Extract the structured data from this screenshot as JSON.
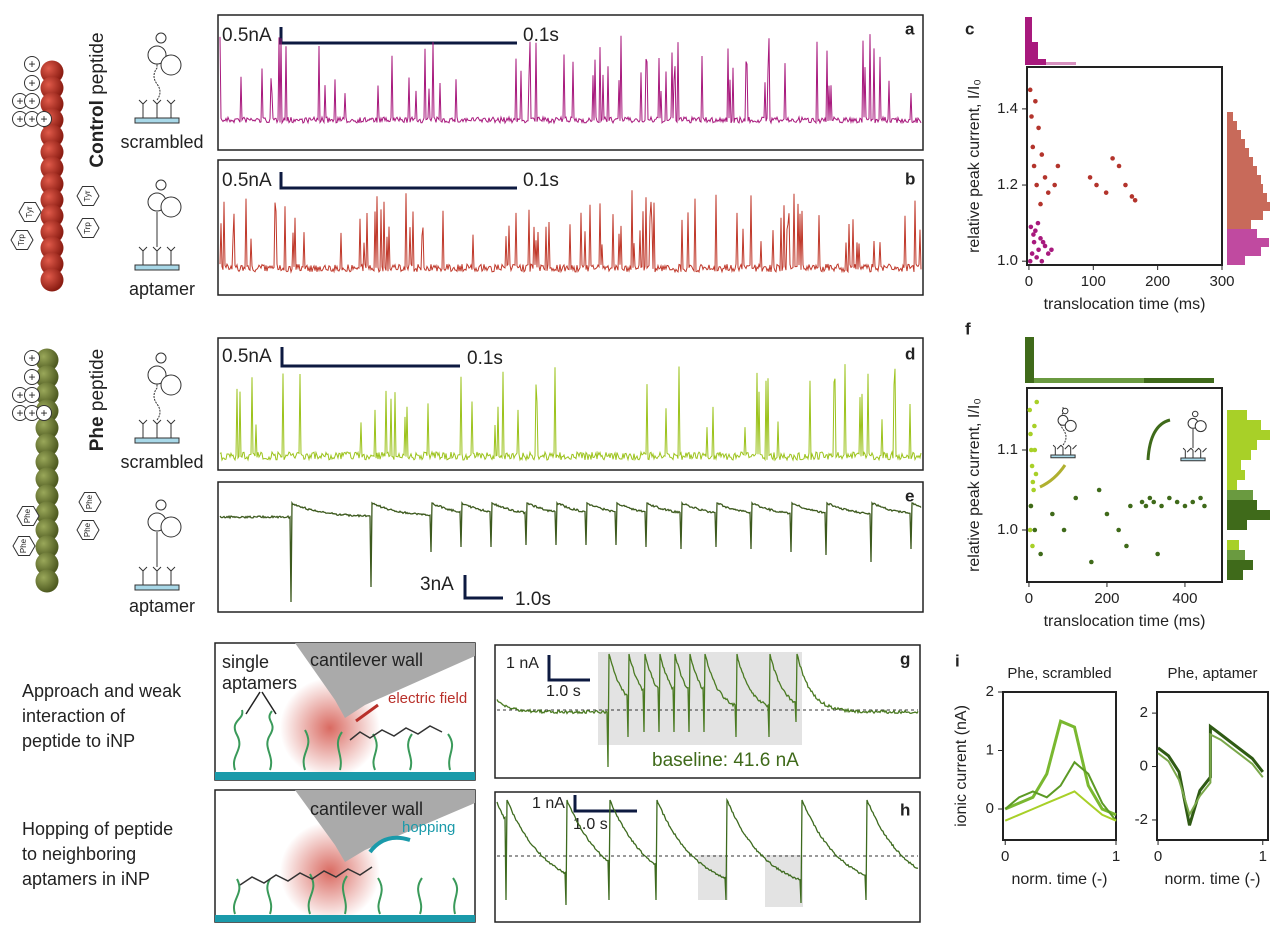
{
  "peptides": [
    {
      "name": "Control",
      "rest": " peptide",
      "charge": "+",
      "residues": [
        "Tyr",
        "Tyr",
        "Trp",
        "Trp"
      ]
    },
    {
      "name": "Phe",
      "rest": " peptide",
      "charge": "+",
      "residues": [
        "Phe",
        "Phe",
        "Phe",
        "Phe"
      ]
    }
  ],
  "traces": [
    {
      "panel": "a",
      "probe": "scrambled",
      "current_scale": "0.5nA",
      "time_scale": "0.1s"
    },
    {
      "panel": "b",
      "probe": "aptamer",
      "current_scale": "0.5nA",
      "time_scale": "0.1s"
    },
    {
      "panel": "d",
      "probe": "scrambled",
      "current_scale": "0.5nA",
      "time_scale": "0.1s"
    },
    {
      "panel": "e",
      "probe": "aptamer",
      "current_scale": "3nA",
      "time_scale": "1.0s"
    },
    {
      "panel": "g",
      "current_scale": "1 nA",
      "time_scale": "1.0 s",
      "annotation": "baseline: 41.6 nA"
    },
    {
      "panel": "h",
      "current_scale": "1 nA",
      "time_scale": "1.0 s"
    }
  ],
  "schematics": [
    {
      "caption": [
        "Approach and weak",
        "interaction of",
        "peptide to iNP"
      ],
      "wall": "cantilever wall",
      "aptamers": [
        "single",
        "aptamers"
      ],
      "field": "electric field"
    },
    {
      "caption": [
        "Hopping of peptide",
        "to neighboring",
        "aptamers in iNP"
      ],
      "wall": "cantilever wall",
      "hop": "hopping"
    }
  ],
  "chart_data": [
    {
      "type": "scatter",
      "panel": "c",
      "y_label": "relative peak current, I/I₀",
      "x_label": "translocation time (ms)",
      "xlim": [
        -3,
        300
      ],
      "ylim": [
        0.99,
        1.51
      ],
      "xticks": [
        0,
        100,
        200,
        300
      ],
      "yticks": [
        {
          "value": 1,
          "label": "1.0"
        },
        1.2,
        1.4
      ],
      "series": [
        {
          "color": "#a8197d",
          "x": [
            2,
            5,
            8,
            10,
            12,
            15,
            18,
            20,
            25,
            30,
            3,
            7,
            14,
            22,
            35
          ],
          "values": [
            1.0,
            1.02,
            1.05,
            1.08,
            1.01,
            1.03,
            1.06,
            1.0,
            1.04,
            1.02,
            1.09,
            1.07,
            1.1,
            1.05,
            1.03
          ]
        },
        {
          "color": "#b3342c",
          "x": [
            2,
            4,
            6,
            8,
            10,
            12,
            15,
            18,
            20,
            25,
            30,
            40,
            45,
            95,
            105,
            120,
            130,
            140,
            150,
            160,
            165
          ],
          "values": [
            1.45,
            1.38,
            1.3,
            1.25,
            1.42,
            1.2,
            1.35,
            1.15,
            1.28,
            1.22,
            1.18,
            1.2,
            1.25,
            1.22,
            1.2,
            1.18,
            1.27,
            1.25,
            1.2,
            1.17,
            1.16
          ]
        }
      ]
    },
    {
      "type": "scatter",
      "panel": "f",
      "y_label": "relative peak current, I/I₀",
      "x_label": "translocation time (ms)",
      "xlim": [
        -5,
        495
      ],
      "ylim": [
        0.935,
        1.1775
      ],
      "xticks": [
        0,
        200,
        400
      ],
      "yticks": [
        {
          "value": 1,
          "label": "1.0"
        },
        1.1
      ],
      "series": [
        {
          "color": "#a8d028",
          "x": [
            2,
            4,
            6,
            8,
            10,
            12,
            15,
            3,
            5,
            9,
            14,
            18,
            20
          ],
          "values": [
            1.15,
            1.12,
            1.1,
            1.08,
            1.06,
            1.05,
            1.1,
            1.0,
            1.03,
            0.98,
            1.13,
            1.07,
            1.16
          ]
        },
        {
          "color": "#3f6a1a",
          "x": [
            5,
            15,
            30,
            60,
            90,
            120,
            160,
            200,
            230,
            260,
            290,
            300,
            310,
            320,
            340,
            360,
            380,
            400,
            420,
            440,
            450,
            250,
            180,
            330
          ],
          "values": [
            1.03,
            1.0,
            0.97,
            1.02,
            1.0,
            1.04,
            0.96,
            1.02,
            1.0,
            1.03,
            1.035,
            1.03,
            1.04,
            1.035,
            1.03,
            1.04,
            1.035,
            1.03,
            1.035,
            1.04,
            1.03,
            0.98,
            1.05,
            0.97
          ]
        }
      ]
    },
    {
      "type": "line",
      "panel": "i",
      "title": "Phe, scrambled",
      "y_label": "ionic current (nA)",
      "x_label": "norm. time (-)",
      "xlim": [
        -0.02,
        1
      ],
      "ylim": [
        -0.53,
        2
      ],
      "xticks": [
        0,
        1
      ],
      "yticks": [
        0,
        1,
        2
      ],
      "x": [
        0,
        0.125,
        0.25,
        0.375,
        0.5,
        0.625,
        0.75,
        0.875,
        1
      ],
      "series": [
        {
          "color": "#7ab830",
          "values": [
            0,
            0.1,
            0.2,
            0.6,
            1.5,
            1.4,
            0.4,
            0,
            -0.1
          ]
        },
        {
          "color": "#5c9a25",
          "values": [
            0,
            0.2,
            0.3,
            0.2,
            0.4,
            0.8,
            0.6,
            0.1,
            -0.2
          ]
        },
        {
          "color": "#a8d028",
          "values": [
            -0.2,
            -0.1,
            0,
            0.1,
            0.2,
            0.3,
            0.1,
            -0.1,
            -0.2
          ]
        }
      ]
    },
    {
      "type": "line",
      "title": "Phe, aptamer",
      "x_label": "norm. time (-)",
      "xlim": [
        -0.01,
        1.05
      ],
      "ylim": [
        -2.75,
        2.79
      ],
      "xticks": [
        0,
        1
      ],
      "yticks": [
        -2,
        0,
        2
      ],
      "x": [
        0,
        0.1,
        0.2,
        0.3,
        0.4,
        0.5,
        0.5,
        0.6,
        0.7,
        0.8,
        0.9,
        1
      ],
      "series": [
        {
          "color": "#2f5a14",
          "values": [
            0.7,
            0.4,
            -0.2,
            -2.2,
            -0.9,
            -0.4,
            1.5,
            1.2,
            0.9,
            0.6,
            0.3,
            -0.2
          ]
        },
        {
          "color": "#7aa84a",
          "values": [
            0.5,
            0.2,
            -0.5,
            -1.8,
            -1.1,
            -0.6,
            1.2,
            1.0,
            0.7,
            0.4,
            0.1,
            -0.4
          ]
        }
      ]
    }
  ]
}
